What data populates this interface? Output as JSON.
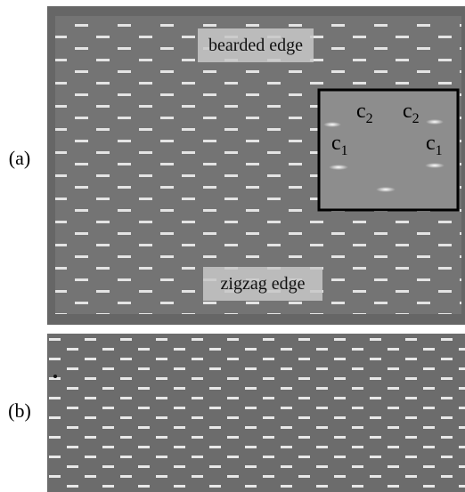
{
  "panels": [
    {
      "label": "(a)",
      "annotations": [
        "bearded edge",
        "zigzag edge"
      ],
      "inset_labels": [
        {
          "base": "c",
          "sub": "2"
        },
        {
          "base": "c",
          "sub": "2"
        },
        {
          "base": "c",
          "sub": "1"
        },
        {
          "base": "c",
          "sub": "1"
        }
      ]
    },
    {
      "label": "(b)"
    }
  ]
}
